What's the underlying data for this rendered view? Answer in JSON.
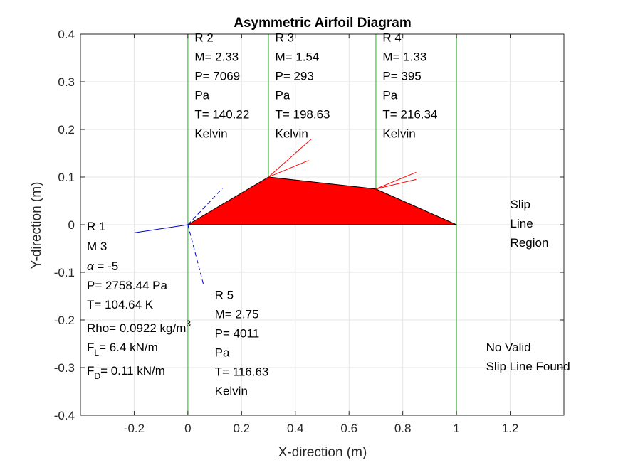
{
  "chart_data": {
    "type": "line",
    "title": "Asymmetric Airfoil Diagram",
    "xlabel": "X-direction (m)",
    "ylabel": "Y-direction (m)",
    "xlim": [
      -0.4,
      1.4
    ],
    "ylim": [
      -0.4,
      0.4
    ],
    "grid": true,
    "x_ticks": [
      -0.2,
      0,
      0.2,
      0.4,
      0.6,
      0.8,
      1,
      1.2
    ],
    "y_ticks": [
      -0.4,
      -0.3,
      -0.2,
      -0.1,
      0,
      0.1,
      0.2,
      0.3,
      0.4
    ],
    "x_tick_labels": [
      "-0.2",
      "0",
      "0.2",
      "0.4",
      "0.6",
      "0.8",
      "1",
      "1.2"
    ],
    "y_tick_labels": [
      "-0.4",
      "-0.3",
      "-0.2",
      "-0.1",
      "0",
      "0.1",
      "0.2",
      "0.3",
      "0.4"
    ],
    "colors": {
      "airfoil": "#ff0000",
      "region_lines": "#33cc33",
      "wave_lines": "#ff0000",
      "freestream": "#0000cc",
      "axes": "#262626",
      "grid": "#e6e6e6"
    },
    "airfoil": {
      "x": [
        0,
        0.3,
        0.7,
        1,
        0
      ],
      "y": [
        0,
        0.1,
        0.075,
        0,
        0
      ]
    },
    "region_boundaries": [
      {
        "x": 0,
        "y": [
          0,
          0.4
        ]
      },
      {
        "x": 0.3,
        "y": [
          0.1,
          0.4
        ]
      },
      {
        "x": 0.7,
        "y": [
          0.075,
          0.4
        ]
      },
      {
        "x": 1,
        "y": [
          -0.4,
          0.4
        ]
      },
      {
        "x": 0,
        "y": [
          -0.4,
          0
        ]
      }
    ],
    "wave_lines": [
      {
        "color": "red",
        "style": "solid",
        "x": [
          0.3,
          0.46
        ],
        "y": [
          0.1,
          0.18
        ]
      },
      {
        "color": "red",
        "style": "solid",
        "x": [
          0.3,
          0.45
        ],
        "y": [
          0.1,
          0.135
        ]
      },
      {
        "color": "red",
        "style": "solid",
        "x": [
          0.7,
          0.85
        ],
        "y": [
          0.075,
          0.11
        ]
      },
      {
        "color": "red",
        "style": "solid",
        "x": [
          0.7,
          0.85
        ],
        "y": [
          0.075,
          0.095
        ]
      },
      {
        "color": "blue",
        "style": "solid",
        "x": [
          -0.2,
          0
        ],
        "y": [
          -0.017,
          0
        ]
      },
      {
        "color": "blue",
        "style": "dashed",
        "x": [
          0,
          0.13
        ],
        "y": [
          0,
          0.077
        ]
      },
      {
        "color": "blue",
        "style": "dashed",
        "x": [
          0,
          0.06
        ],
        "y": [
          0,
          -0.13
        ]
      }
    ],
    "annotations": [
      {
        "x": 0.025,
        "y": 0.39,
        "lines": [
          "R 2",
          "M= 2.33",
          "P= 7069",
          "Pa",
          "T= 140.22",
          "Kelvin"
        ]
      },
      {
        "x": 0.325,
        "y": 0.39,
        "lines": [
          "R 3",
          "M= 1.54",
          "P= 293",
          "Pa",
          "T= 198.63",
          "Kelvin"
        ]
      },
      {
        "x": 0.725,
        "y": 0.39,
        "lines": [
          "R 4",
          "M= 1.33",
          "P= 395",
          "Pa",
          "T= 216.34",
          "Kelvin"
        ]
      },
      {
        "x": 1.2,
        "y": 0.04,
        "lines": [
          "Slip",
          "Line",
          "Region"
        ]
      },
      {
        "x": 1.11,
        "y": -0.26,
        "lines": [
          "No Valid",
          "Slip Line Found"
        ]
      },
      {
        "x": 0.1,
        "y": -0.15,
        "lines": [
          "R 5",
          "M= 2.75",
          "P= 4011",
          "Pa",
          "T= 116.63",
          "Kelvin"
        ]
      }
    ],
    "left_annotation": {
      "x": -0.375,
      "y": 0,
      "region": "R 1",
      "mach": "M 3",
      "alpha_symbol": "α",
      "alpha_text": " =  -5",
      "pressure": "P= 2758.44 Pa",
      "temperature": "T= 104.64 K",
      "rho_text": "Rho= 0.0922 kg/m",
      "rho_sup": "3",
      "lift_prefix": "F",
      "lift_sub": "L",
      "lift_value": "= 6.4 kN/m",
      "drag_prefix": "F",
      "drag_sub": "D",
      "drag_value": "= 0.11 kN/m"
    }
  }
}
